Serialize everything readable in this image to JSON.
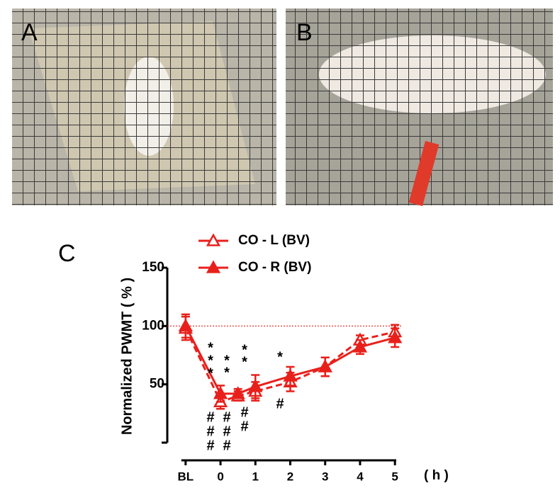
{
  "panels": {
    "a": "A",
    "b": "B",
    "c": "C"
  },
  "chart_data": {
    "type": "line",
    "y_label": "Normalized PWMT ( % )",
    "x_label": "( h )",
    "xlim": [
      -1.2,
      5.2
    ],
    "xticks": [
      {
        "value": -1,
        "label": "BL"
      },
      0,
      1,
      2,
      3,
      4,
      5
    ],
    "ylim": [
      0,
      150
    ],
    "yticks": [
      50,
      100,
      150
    ],
    "reference_line": 100,
    "reference_color": "#e8201b",
    "series": [
      {
        "name": "CO - L (BV)",
        "color": "#e8201b",
        "marker": "open-triangle",
        "dashed": true,
        "x": [
          -1,
          0,
          0.5,
          1,
          2,
          3,
          4,
          5
        ],
        "values": [
          98,
          35,
          40,
          44,
          52,
          65,
          88,
          95
        ],
        "errors": [
          10,
          6,
          4,
          8,
          8,
          8,
          4,
          6
        ]
      },
      {
        "name": "CO - R (BV)",
        "color": "#e8201b",
        "marker": "filled-triangle",
        "dashed": false,
        "x": [
          -1,
          0,
          0.5,
          1,
          2,
          3,
          4,
          5
        ],
        "values": [
          100,
          42,
          42,
          48,
          57,
          65,
          82,
          90
        ],
        "errors": [
          10,
          7,
          4,
          10,
          8,
          8,
          6,
          8
        ]
      }
    ],
    "annotations": [
      [
        "*",
        "*",
        "*"
      ],
      [
        "*",
        "*"
      ],
      [
        "*",
        "*"
      ],
      [
        "*"
      ],
      [
        "#",
        "#",
        "#"
      ],
      [
        "#",
        "#",
        "#"
      ],
      [
        "#",
        "#"
      ],
      [
        "#"
      ]
    ]
  }
}
